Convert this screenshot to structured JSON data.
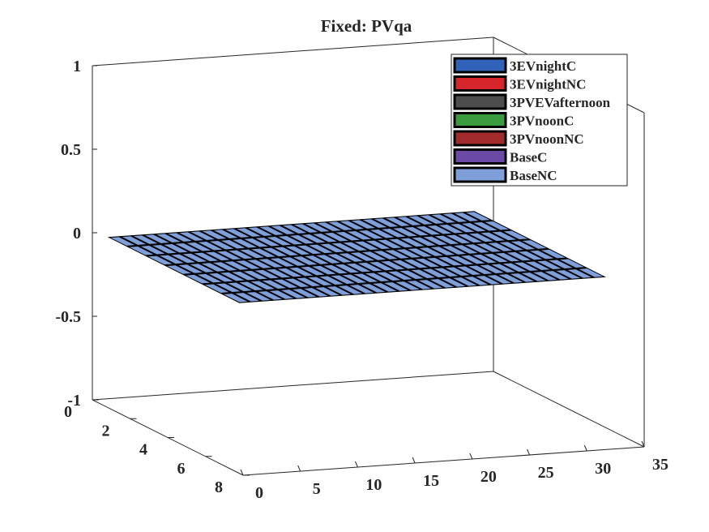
{
  "chart_data": {
    "type": "bar3",
    "title": "Fixed: PVqa",
    "xlabel": "",
    "ylabel": "",
    "zlabel": "",
    "x_ticks": [
      0,
      5,
      10,
      15,
      20,
      25,
      30,
      35
    ],
    "x_range": [
      0,
      35
    ],
    "y_ticks": [
      0,
      2,
      4,
      6,
      8
    ],
    "y_range": [
      0,
      8
    ],
    "z_ticks": [
      1,
      0.5,
      0,
      -0.5,
      -1
    ],
    "z_range": [
      -1,
      1
    ],
    "x_count": 32,
    "series": [
      {
        "name": "3EVnightC",
        "color": "#2f62b8",
        "value_all": 0
      },
      {
        "name": "3EVnightNC",
        "color": "#d7262b",
        "value_all": 0
      },
      {
        "name": "3PVEVafternoon",
        "color": "#4d4d4d",
        "value_all": 0
      },
      {
        "name": "3PVnoonC",
        "color": "#3a9a3e",
        "value_all": 0
      },
      {
        "name": "3PVnoonNC",
        "color": "#a12a2a",
        "value_all": 0
      },
      {
        "name": "BaseC",
        "color": "#6a4aa4",
        "value_all": 0
      },
      {
        "name": "BaseNC",
        "color": "#7f9fdb",
        "value_all": 0
      }
    ],
    "legend_position": "top-right",
    "grid": false
  }
}
